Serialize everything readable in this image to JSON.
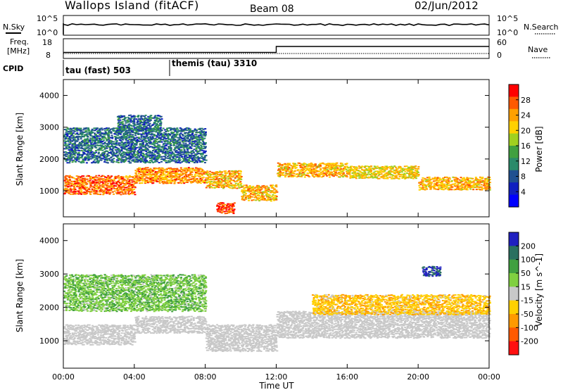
{
  "header": {
    "title": "Wallops Island (fitACF)",
    "beam": "Beam 08",
    "date": "02/Jun/2012"
  },
  "param_panels": {
    "nsky_label": "N.Sky",
    "nsearch_label": "N.Search",
    "noise_ticks_left": [
      "10^5",
      "10^0"
    ],
    "noise_ticks_right": [
      "10^5",
      "10^0"
    ],
    "freq_label_1": "Freq.",
    "freq_label_2": "[MHz]",
    "freq_ticks": [
      "18",
      "8"
    ],
    "nave_label": "Nave",
    "nave_ticks": [
      "60",
      "0"
    ],
    "cpid_label": "CPID",
    "cpid_segments": [
      {
        "label": "tau (fast) 503",
        "start_hour": 0
      },
      {
        "label": "themis (tau) 3310",
        "start_hour": 6.1
      }
    ],
    "freq_trace": [
      {
        "hour": 0,
        "mhz": 10.3
      },
      {
        "hour": 12,
        "mhz": 10.3
      },
      {
        "hour": 12,
        "mhz": 14.5
      },
      {
        "hour": 24,
        "mhz": 14.5
      }
    ]
  },
  "axes": {
    "x_label": "Time UT",
    "x_ticks": [
      "00:00",
      "04:00",
      "08:00",
      "12:00",
      "16:00",
      "20:00",
      "00:00"
    ],
    "y_label_power": "Slant Range [km]",
    "y_label_velocity": "Slant Range [km]",
    "y_ticks": [
      "4000",
      "3000",
      "2000",
      "1000"
    ]
  },
  "colorbars": {
    "power": {
      "label": "Power [dB]",
      "ticks": [
        "28",
        "24",
        "20",
        "16",
        "12",
        "8",
        "4"
      ],
      "colors": [
        "#ff0000",
        "#ff5a00",
        "#ffa000",
        "#ffd000",
        "#a0d020",
        "#40a040",
        "#2a8a6a",
        "#205090",
        "#1020c0",
        "#0000ff"
      ]
    },
    "velocity": {
      "label": "Velocity [m s^-1]",
      "ticks": [
        "200",
        "100",
        "50",
        "15",
        "-15",
        "-50",
        "-100",
        "-200"
      ],
      "colors": [
        "#2020c0",
        "#2a7060",
        "#40a040",
        "#80d040",
        "#c8c8c8",
        "#ffd000",
        "#ff9a00",
        "#ff5a00",
        "#ff1010"
      ]
    }
  },
  "chart_data": [
    {
      "type": "heatmap",
      "name": "Power",
      "xlabel": "Time UT",
      "ylabel": "Slant Range [km]",
      "xlim_hours": [
        0,
        24
      ],
      "ylim_km": [
        180,
        4500
      ],
      "color_label": "Power [dB]",
      "bands": [
        {
          "t0": 0,
          "t1": 4,
          "r0": 900,
          "r1": 1500,
          "db": 26
        },
        {
          "t0": 4,
          "t1": 8,
          "r0": 1250,
          "r1": 1750,
          "db": 24
        },
        {
          "t0": 8,
          "t1": 10,
          "r0": 1100,
          "r1": 1650,
          "db": 22
        },
        {
          "t0": 10,
          "t1": 12,
          "r0": 700,
          "r1": 1200,
          "db": 22
        },
        {
          "t0": 12,
          "t1": 16,
          "r0": 1450,
          "r1": 1900,
          "db": 22
        },
        {
          "t0": 16,
          "t1": 20,
          "r0": 1400,
          "r1": 1800,
          "db": 20
        },
        {
          "t0": 20,
          "t1": 24,
          "r0": 1050,
          "r1": 1450,
          "db": 22
        },
        {
          "t0": 8.6,
          "t1": 9.6,
          "r0": 300,
          "r1": 650,
          "db": 28
        },
        {
          "t0": 0,
          "t1": 8,
          "r0": 1900,
          "r1": 3000,
          "db": 8
        },
        {
          "t0": 3,
          "t1": 5.5,
          "r0": 2900,
          "r1": 3400,
          "db": 8
        }
      ]
    },
    {
      "type": "heatmap",
      "name": "Velocity",
      "xlabel": "Time UT",
      "ylabel": "Slant Range [km]",
      "xlim_hours": [
        0,
        24
      ],
      "ylim_km": [
        180,
        4500
      ],
      "color_label": "Velocity [m s^-1]",
      "bands": [
        {
          "t0": 0,
          "t1": 4,
          "r0": 900,
          "r1": 1500,
          "v": 0
        },
        {
          "t0": 4,
          "t1": 8,
          "r0": 1250,
          "r1": 1750,
          "v": 0
        },
        {
          "t0": 8,
          "t1": 12,
          "r0": 700,
          "r1": 1500,
          "v": 0
        },
        {
          "t0": 12,
          "t1": 24,
          "r0": 1100,
          "r1": 1900,
          "v": 0
        },
        {
          "t0": 20.2,
          "t1": 21.2,
          "r0": 2950,
          "r1": 3250,
          "v": 200
        },
        {
          "t0": 0,
          "t1": 8,
          "r0": 1900,
          "r1": 3000,
          "v": 40
        },
        {
          "t0": 14,
          "t1": 24,
          "r0": 1800,
          "r1": 2400,
          "v": -40
        }
      ]
    }
  ]
}
